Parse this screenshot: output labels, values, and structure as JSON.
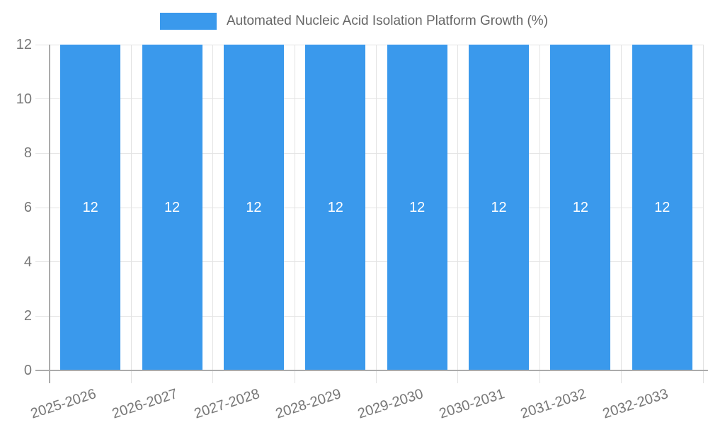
{
  "legend": {
    "label": "Automated Nucleic Acid Isolation Platform Growth (%)"
  },
  "chart_data": {
    "type": "bar",
    "title": "Automated Nucleic Acid Isolation Platform Growth (%)",
    "categories": [
      "2025-2026",
      "2026-2027",
      "2027-2028",
      "2028-2029",
      "2029-2030",
      "2030-2031",
      "2031-2032",
      "2032-2033"
    ],
    "values": [
      12,
      12,
      12,
      12,
      12,
      12,
      12,
      12
    ],
    "bar_labels": [
      "12",
      "12",
      "12",
      "12",
      "12",
      "12",
      "12",
      "12"
    ],
    "xlabel": "",
    "ylabel": "",
    "ylim": [
      0,
      12
    ],
    "yticks": [
      0,
      2,
      4,
      6,
      8,
      10,
      12
    ],
    "grid": true,
    "legend_position": "top",
    "colors": {
      "bar": "#3a99ec",
      "bar_label": "#ffffff",
      "grid": "#e3e3e3",
      "axis": "#ababab",
      "tick_text": "#777777",
      "title_text": "#666666"
    }
  }
}
